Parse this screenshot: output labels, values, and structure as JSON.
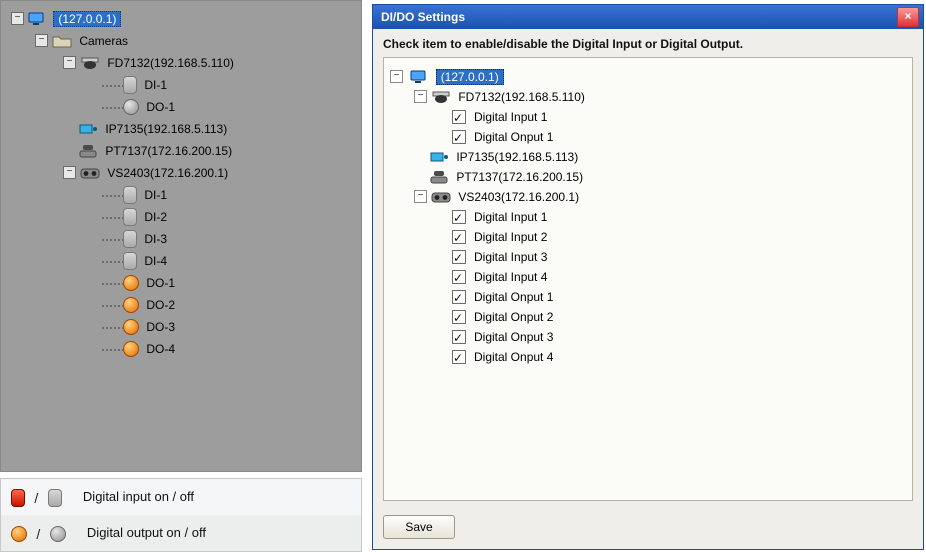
{
  "colors": {
    "left_bg": "#9d9d9e",
    "dialog_title_grad": [
      "#3a73d4",
      "#1a51b0"
    ],
    "dialog_body": "#efeeea",
    "inner_bg": "#fbfbf7",
    "inner_border": "#b9b49a",
    "selection": "#2b6fc7"
  },
  "left_tree": {
    "root_label": "(127.0.0.1)",
    "folder_label": "Cameras",
    "cameras": [
      {
        "name": "FD7132(192.168.5.110)",
        "type": "dome",
        "expanded": true,
        "io": [
          {
            "label": "DI-1",
            "kind": "di"
          },
          {
            "label": "DO-1",
            "kind": "do"
          }
        ]
      },
      {
        "name": "IP7135(192.168.5.113)",
        "type": "box",
        "expanded": false,
        "io": []
      },
      {
        "name": "PT7137(172.16.200.15)",
        "type": "ptz",
        "expanded": false,
        "io": []
      },
      {
        "name": "VS2403(172.16.200.1)",
        "type": "server",
        "expanded": true,
        "io": [
          {
            "label": "DI-1",
            "kind": "di"
          },
          {
            "label": "DI-2",
            "kind": "di"
          },
          {
            "label": "DI-3",
            "kind": "di"
          },
          {
            "label": "DI-4",
            "kind": "di"
          },
          {
            "label": "DO-1",
            "kind": "do_on"
          },
          {
            "label": "DO-2",
            "kind": "do_on"
          },
          {
            "label": "DO-3",
            "kind": "do_on"
          },
          {
            "label": "DO-4",
            "kind": "do_on"
          }
        ]
      }
    ]
  },
  "legend": {
    "row1": "Digital input on / off",
    "row2": "Digital output on / off"
  },
  "dialog": {
    "title": "DI/DO Settings",
    "instruction": "Check item to enable/disable the Digital Input or Digital Output.",
    "root_label": "(127.0.0.1)",
    "save_label": "Save",
    "cameras": [
      {
        "name": "FD7132(192.168.5.110)",
        "type": "dome",
        "items": [
          {
            "label": "Digital Input 1",
            "checked": true
          },
          {
            "label": "Digital Onput 1",
            "checked": true
          }
        ]
      },
      {
        "name": "IP7135(192.168.5.113)",
        "type": "box",
        "items": []
      },
      {
        "name": "PT7137(172.16.200.15)",
        "type": "ptz",
        "items": []
      },
      {
        "name": "VS2403(172.16.200.1)",
        "type": "server",
        "items": [
          {
            "label": "Digital Input 1",
            "checked": true
          },
          {
            "label": "Digital Input 2",
            "checked": true
          },
          {
            "label": "Digital Input 3",
            "checked": true
          },
          {
            "label": "Digital Input 4",
            "checked": true
          },
          {
            "label": "Digital Onput 1",
            "checked": true
          },
          {
            "label": "Digital Onput 2",
            "checked": true
          },
          {
            "label": "Digital Onput 3",
            "checked": true
          },
          {
            "label": "Digital Onput 4",
            "checked": true
          }
        ]
      }
    ]
  }
}
